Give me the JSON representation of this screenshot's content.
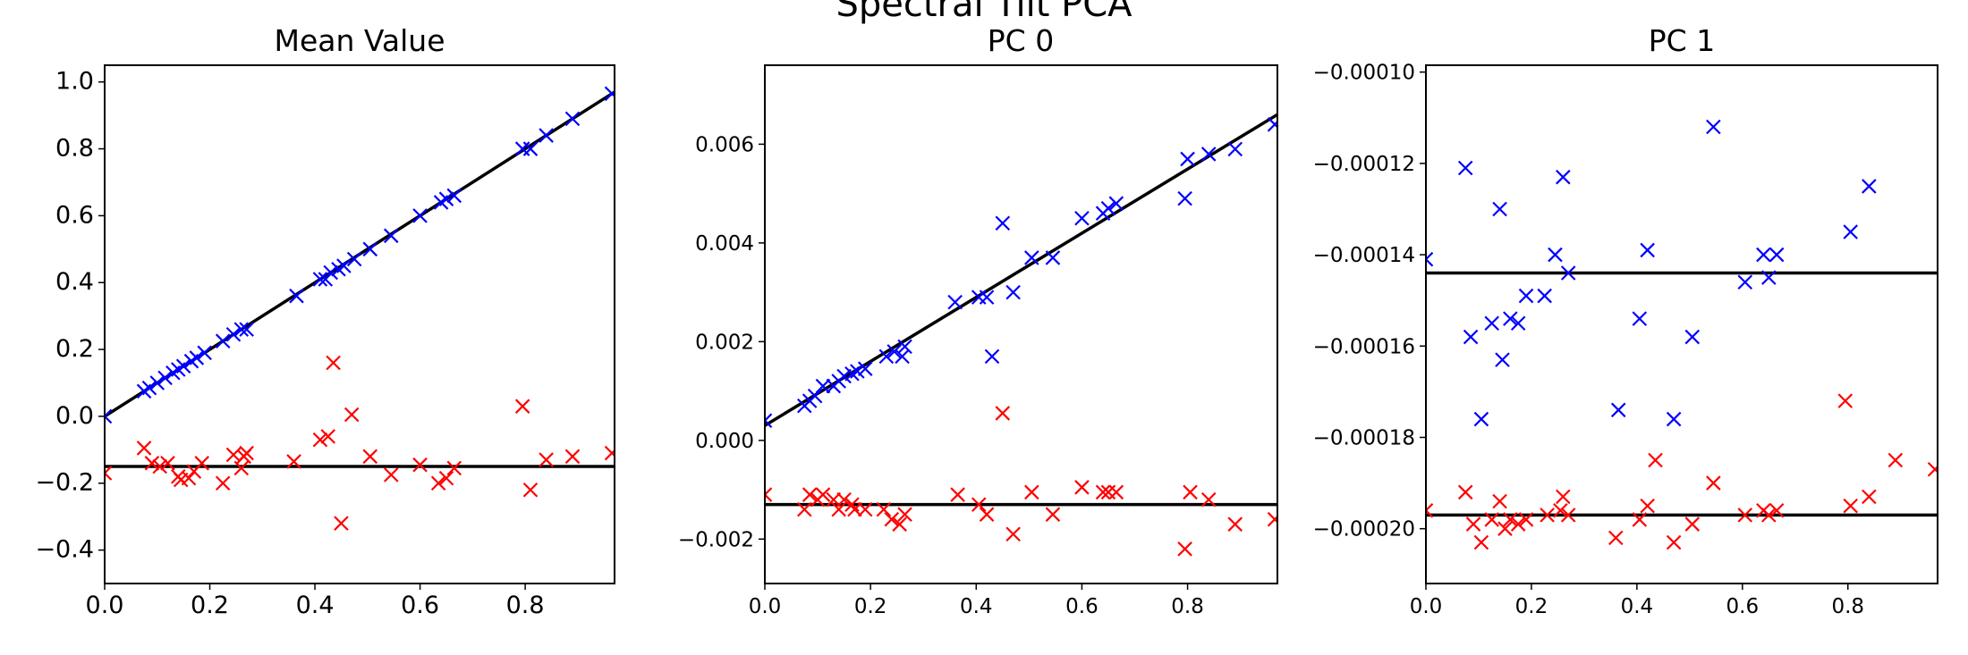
{
  "figure": {
    "suptitle": "Spectral Tilt PCA"
  },
  "chart_data": [
    {
      "type": "scatter",
      "title": "Mean Value",
      "xlabel": "",
      "ylabel": "",
      "xlim": [
        0.0,
        0.97
      ],
      "ylim": [
        -0.5,
        1.05
      ],
      "xticks": [
        "0.0",
        "0.2",
        "0.4",
        "0.6",
        "0.8"
      ],
      "yticks": [
        "−0.4",
        "−0.2",
        "0.0",
        "0.2",
        "0.4",
        "0.6",
        "0.8",
        "1.0"
      ],
      "series": [
        {
          "color": "#0000ff",
          "marker": "x",
          "points": [
            [
              0.0,
              0.0
            ],
            [
              0.075,
              0.075
            ],
            [
              0.085,
              0.085
            ],
            [
              0.1,
              0.1
            ],
            [
              0.115,
              0.115
            ],
            [
              0.13,
              0.13
            ],
            [
              0.14,
              0.14
            ],
            [
              0.15,
              0.15
            ],
            [
              0.165,
              0.165
            ],
            [
              0.175,
              0.175
            ],
            [
              0.19,
              0.19
            ],
            [
              0.225,
              0.225
            ],
            [
              0.245,
              0.245
            ],
            [
              0.26,
              0.26
            ],
            [
              0.27,
              0.26
            ],
            [
              0.365,
              0.36
            ],
            [
              0.41,
              0.41
            ],
            [
              0.42,
              0.41
            ],
            [
              0.43,
              0.43
            ],
            [
              0.445,
              0.44
            ],
            [
              0.455,
              0.45
            ],
            [
              0.475,
              0.47
            ],
            [
              0.505,
              0.5
            ],
            [
              0.545,
              0.54
            ],
            [
              0.6,
              0.6
            ],
            [
              0.64,
              0.64
            ],
            [
              0.65,
              0.65
            ],
            [
              0.665,
              0.66
            ],
            [
              0.795,
              0.8
            ],
            [
              0.81,
              0.8
            ],
            [
              0.84,
              0.84
            ],
            [
              0.89,
              0.89
            ],
            [
              0.965,
              0.965
            ]
          ]
        },
        {
          "color": "#ff0000",
          "marker": "x",
          "points": [
            [
              0.0,
              -0.17
            ],
            [
              0.075,
              -0.095
            ],
            [
              0.09,
              -0.14
            ],
            [
              0.105,
              -0.15
            ],
            [
              0.12,
              -0.14
            ],
            [
              0.14,
              -0.18
            ],
            [
              0.145,
              -0.19
            ],
            [
              0.16,
              -0.185
            ],
            [
              0.17,
              -0.165
            ],
            [
              0.185,
              -0.14
            ],
            [
              0.225,
              -0.2
            ],
            [
              0.245,
              -0.115
            ],
            [
              0.26,
              -0.155
            ],
            [
              0.265,
              -0.12
            ],
            [
              0.27,
              -0.11
            ],
            [
              0.36,
              -0.135
            ],
            [
              0.41,
              -0.07
            ],
            [
              0.425,
              -0.06
            ],
            [
              0.435,
              0.16
            ],
            [
              0.45,
              -0.32
            ],
            [
              0.47,
              0.005
            ],
            [
              0.505,
              -0.12
            ],
            [
              0.545,
              -0.175
            ],
            [
              0.6,
              -0.145
            ],
            [
              0.635,
              -0.2
            ],
            [
              0.65,
              -0.185
            ],
            [
              0.665,
              -0.155
            ],
            [
              0.795,
              0.03
            ],
            [
              0.81,
              -0.22
            ],
            [
              0.84,
              -0.13
            ],
            [
              0.89,
              -0.12
            ],
            [
              0.965,
              -0.11
            ]
          ]
        }
      ],
      "lines": [
        {
          "color": "#000000",
          "x": [
            0.0,
            0.97
          ],
          "y": [
            0.0,
            0.97
          ]
        },
        {
          "color": "#000000",
          "x": [
            0.0,
            0.97
          ],
          "y": [
            -0.15,
            -0.15
          ]
        }
      ]
    },
    {
      "type": "scatter",
      "title": "PC 0",
      "xlabel": "",
      "ylabel": "",
      "xlim": [
        0.0,
        0.97
      ],
      "ylim": [
        -0.0029,
        0.0076
      ],
      "xticks": [
        "0.0",
        "0.2",
        "0.4",
        "0.6",
        "0.8"
      ],
      "yticks": [
        "−0.002",
        "0.000",
        "0.002",
        "0.004",
        "0.006"
      ],
      "series": [
        {
          "color": "#0000ff",
          "marker": "x",
          "points": [
            [
              0.0,
              0.0004
            ],
            [
              0.075,
              0.0007
            ],
            [
              0.085,
              0.0008
            ],
            [
              0.095,
              0.0009
            ],
            [
              0.11,
              0.0011
            ],
            [
              0.13,
              0.0011
            ],
            [
              0.14,
              0.0012
            ],
            [
              0.15,
              0.0013
            ],
            [
              0.165,
              0.00135
            ],
            [
              0.175,
              0.0014
            ],
            [
              0.19,
              0.00145
            ],
            [
              0.23,
              0.0017
            ],
            [
              0.245,
              0.0018
            ],
            [
              0.26,
              0.0017
            ],
            [
              0.265,
              0.0019
            ],
            [
              0.36,
              0.0028
            ],
            [
              0.405,
              0.0029
            ],
            [
              0.42,
              0.0029
            ],
            [
              0.43,
              0.0017
            ],
            [
              0.45,
              0.0044
            ],
            [
              0.47,
              0.003
            ],
            [
              0.505,
              0.0037
            ],
            [
              0.545,
              0.0037
            ],
            [
              0.6,
              0.0045
            ],
            [
              0.64,
              0.0046
            ],
            [
              0.65,
              0.0047
            ],
            [
              0.665,
              0.0048
            ],
            [
              0.795,
              0.0049
            ],
            [
              0.8,
              0.0057
            ],
            [
              0.84,
              0.0058
            ],
            [
              0.89,
              0.0059
            ],
            [
              0.965,
              0.0064
            ]
          ]
        },
        {
          "color": "#ff0000",
          "marker": "x",
          "points": [
            [
              0.0,
              -0.0011
            ],
            [
              0.075,
              -0.0014
            ],
            [
              0.085,
              -0.0011
            ],
            [
              0.1,
              -0.0012
            ],
            [
              0.11,
              -0.0011
            ],
            [
              0.13,
              -0.0012
            ],
            [
              0.14,
              -0.0014
            ],
            [
              0.15,
              -0.0012
            ],
            [
              0.165,
              -0.0013
            ],
            [
              0.17,
              -0.0014
            ],
            [
              0.19,
              -0.0014
            ],
            [
              0.225,
              -0.0014
            ],
            [
              0.24,
              -0.0016
            ],
            [
              0.255,
              -0.0017
            ],
            [
              0.265,
              -0.0015
            ],
            [
              0.365,
              -0.0011
            ],
            [
              0.405,
              -0.0013
            ],
            [
              0.42,
              -0.0015
            ],
            [
              0.45,
              0.00055
            ],
            [
              0.47,
              -0.0019
            ],
            [
              0.505,
              -0.00105
            ],
            [
              0.545,
              -0.0015
            ],
            [
              0.6,
              -0.00095
            ],
            [
              0.64,
              -0.00105
            ],
            [
              0.65,
              -0.00105
            ],
            [
              0.665,
              -0.00105
            ],
            [
              0.795,
              -0.0022
            ],
            [
              0.805,
              -0.00105
            ],
            [
              0.84,
              -0.0012
            ],
            [
              0.89,
              -0.0017
            ],
            [
              0.965,
              -0.0016
            ]
          ]
        }
      ],
      "lines": [
        {
          "color": "#000000",
          "x": [
            0.0,
            0.97
          ],
          "y": [
            0.0003,
            0.0066
          ]
        },
        {
          "color": "#000000",
          "x": [
            0.0,
            0.97
          ],
          "y": [
            -0.0013,
            -0.0013
          ]
        }
      ]
    },
    {
      "type": "scatter",
      "title": "PC 1",
      "xlabel": "",
      "ylabel": "",
      "xlim": [
        0.0,
        0.97
      ],
      "ylim": [
        -0.000212,
        -9.85e-05
      ],
      "xticks": [
        "0.0",
        "0.2",
        "0.4",
        "0.6",
        "0.8"
      ],
      "yticks": [
        "−0.00020",
        "−0.00018",
        "−0.00016",
        "−0.00014",
        "−0.00012",
        "−0.00010"
      ],
      "series": [
        {
          "color": "#0000ff",
          "marker": "x",
          "points": [
            [
              0.0,
              -0.000141
            ],
            [
              0.075,
              -0.000121
            ],
            [
              0.085,
              -0.000158
            ],
            [
              0.105,
              -0.000176
            ],
            [
              0.125,
              -0.000155
            ],
            [
              0.14,
              -0.00013
            ],
            [
              0.145,
              -0.000163
            ],
            [
              0.16,
              -0.000154
            ],
            [
              0.175,
              -0.000155
            ],
            [
              0.19,
              -0.000149
            ],
            [
              0.225,
              -0.000149
            ],
            [
              0.245,
              -0.00014
            ],
            [
              0.26,
              -0.000123
            ],
            [
              0.27,
              -0.000144
            ],
            [
              0.365,
              -0.000174
            ],
            [
              0.405,
              -0.000154
            ],
            [
              0.42,
              -0.000139
            ],
            [
              0.47,
              -0.000176
            ],
            [
              0.505,
              -0.000158
            ],
            [
              0.545,
              -0.000112
            ],
            [
              0.605,
              -0.000146
            ],
            [
              0.64,
              -0.00014
            ],
            [
              0.65,
              -0.000145
            ],
            [
              0.665,
              -0.00014
            ],
            [
              0.805,
              -0.000135
            ],
            [
              0.84,
              -0.000125
            ]
          ]
        },
        {
          "color": "#ff0000",
          "marker": "x",
          "points": [
            [
              0.0,
              -0.000196
            ],
            [
              0.075,
              -0.000192
            ],
            [
              0.09,
              -0.000199
            ],
            [
              0.105,
              -0.000203
            ],
            [
              0.125,
              -0.000198
            ],
            [
              0.14,
              -0.000194
            ],
            [
              0.15,
              -0.0002
            ],
            [
              0.16,
              -0.000198
            ],
            [
              0.175,
              -0.000199
            ],
            [
              0.19,
              -0.000198
            ],
            [
              0.23,
              -0.000197
            ],
            [
              0.255,
              -0.000196
            ],
            [
              0.26,
              -0.000193
            ],
            [
              0.27,
              -0.000197
            ],
            [
              0.36,
              -0.000202
            ],
            [
              0.405,
              -0.000198
            ],
            [
              0.42,
              -0.000195
            ],
            [
              0.435,
              -0.000185
            ],
            [
              0.47,
              -0.000203
            ],
            [
              0.505,
              -0.000199
            ],
            [
              0.545,
              -0.00019
            ],
            [
              0.605,
              -0.000197
            ],
            [
              0.64,
              -0.000196
            ],
            [
              0.65,
              -0.000197
            ],
            [
              0.665,
              -0.000196
            ],
            [
              0.795,
              -0.000172
            ],
            [
              0.805,
              -0.000195
            ],
            [
              0.84,
              -0.000193
            ],
            [
              0.89,
              -0.000185
            ],
            [
              0.965,
              -0.000187
            ]
          ]
        }
      ],
      "lines": [
        {
          "color": "#000000",
          "x": [
            0.0,
            0.97
          ],
          "y": [
            -0.000144,
            -0.000144
          ]
        },
        {
          "color": "#000000",
          "x": [
            0.0,
            0.97
          ],
          "y": [
            -0.000197,
            -0.000197
          ]
        }
      ]
    }
  ]
}
